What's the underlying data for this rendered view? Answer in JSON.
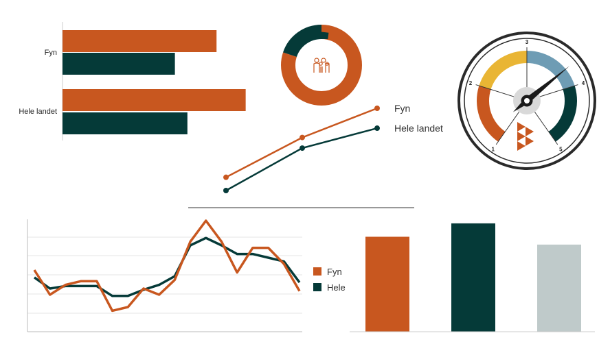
{
  "colors": {
    "fyn": "#C8571F",
    "hele": "#053A38",
    "gray": "#BFCACA",
    "yellow": "#E9B534",
    "blue": "#6E9CB4",
    "axis": "#BBBBBB",
    "grid": "#E6E6E6"
  },
  "chart_data": [
    {
      "type": "bar",
      "orientation": "horizontal",
      "categories": [
        "Fyn",
        "Hele landet"
      ],
      "series": [
        {
          "color": "#C8571F",
          "values": [
            0.74,
            0.88
          ]
        },
        {
          "color": "#053A38",
          "values": [
            0.54,
            0.6
          ]
        }
      ]
    },
    {
      "type": "pie",
      "variant": "donut",
      "icon": "family-icon",
      "slices": [
        {
          "color": "#C8571F",
          "value": 0.8
        },
        {
          "color": "#053A38",
          "value": 0.2
        }
      ]
    },
    {
      "type": "line",
      "x": [
        1,
        2,
        3
      ],
      "series": [
        {
          "name": "Fyn",
          "color": "#C8571F",
          "values": [
            10,
            40,
            62
          ]
        },
        {
          "name": "Hele landet",
          "color": "#053A38",
          "values": [
            0,
            32,
            47
          ]
        }
      ]
    },
    {
      "type": "gauge",
      "tick_labels": [
        "1",
        "2",
        "3",
        "4",
        "5"
      ],
      "segments": [
        {
          "from": 1,
          "to": 2,
          "color": "#C8571F"
        },
        {
          "from": 2,
          "to": 3,
          "color": "#E9B534"
        },
        {
          "from": 3,
          "to": 4,
          "color": "#6E9CB4"
        },
        {
          "from": 4,
          "to": 5,
          "color": "#053A38"
        }
      ],
      "value": 3.7,
      "icon": "triangles-logo-icon"
    },
    {
      "type": "line",
      "x": [
        1,
        2,
        3,
        4,
        5,
        6,
        7,
        8,
        9,
        10,
        11,
        12,
        13,
        14,
        15,
        16,
        17,
        18,
        19
      ],
      "ylim": [
        0,
        100
      ],
      "grid": true,
      "legend": "right",
      "series": [
        {
          "name": "Fyn",
          "color": "#C8571F",
          "values": [
            50,
            30,
            38,
            41,
            41,
            17,
            20,
            35,
            30,
            42,
            73,
            90,
            73,
            48,
            68,
            68,
            55,
            33,
            33
          ]
        },
        {
          "name": "Hele",
          "color": "#053A38",
          "values": [
            44,
            35,
            37,
            37,
            37,
            29,
            29,
            34,
            38,
            45,
            70,
            76,
            70,
            63,
            63,
            60,
            57,
            40,
            40
          ]
        }
      ]
    },
    {
      "type": "bar",
      "categories": [
        "",
        "",
        ""
      ],
      "values": [
        0.85,
        0.97,
        0.78
      ],
      "colors": [
        "#C8571F",
        "#053A38",
        "#BFCACA"
      ]
    }
  ],
  "bottom_line_fix": [
    {
      "name": "Fyn",
      "values": [
        50,
        30,
        38,
        41,
        41,
        17,
        20,
        35,
        30,
        42,
        73,
        90,
        73,
        48,
        68,
        68,
        55,
        33
      ]
    },
    {
      "name": "Hele",
      "values": [
        44,
        35,
        37,
        37,
        37,
        29,
        29,
        34,
        38,
        45,
        70,
        76,
        70,
        63,
        63,
        60,
        57,
        40
      ]
    }
  ]
}
